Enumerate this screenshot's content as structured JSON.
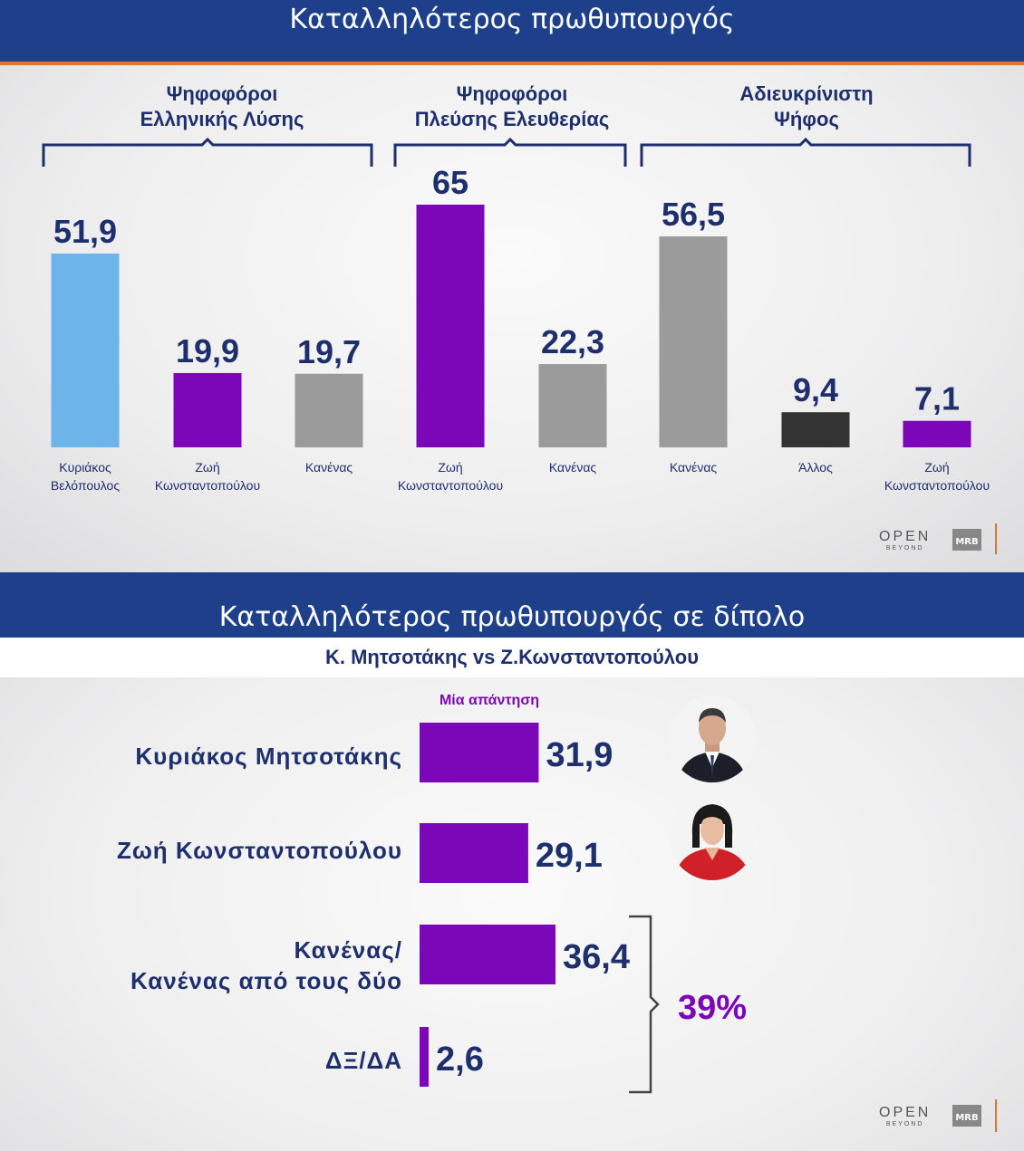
{
  "colors": {
    "title_bar": "#1e3f8a",
    "accent_orange": "#e9722a",
    "text_navy": "#1e2f6e",
    "light_blue": "#6cb4ea",
    "purple": "#7b07b8",
    "gray": "#9b9b9b",
    "dark": "#333333"
  },
  "top": {
    "title": "Καταλληλότερος πρωθυπουργός",
    "groups": [
      {
        "label_line1": "Ψηφοφόροι",
        "label_line2": "Ελληνικής Λύσης"
      },
      {
        "label_line1": "Ψηφοφόροι",
        "label_line2": "Πλεύσης Ελευθερίας"
      },
      {
        "label_line1": "Αδιευκρίνιστη",
        "label_line2": "Ψήφος"
      }
    ],
    "categories": [
      {
        "line1": "Κυριάκος",
        "line2": "Βελόπουλος"
      },
      {
        "line1": "Ζωή",
        "line2": "Κωνσταντοπούλου"
      },
      {
        "line1": "Κανένας",
        "line2": ""
      },
      {
        "line1": "Ζωή",
        "line2": "Κωνσταντοπούλου"
      },
      {
        "line1": "Κανένας",
        "line2": ""
      },
      {
        "line1": "Κανένας",
        "line2": ""
      },
      {
        "line1": "Άλλος",
        "line2": ""
      },
      {
        "line1": "Ζωή",
        "line2": "Κωνσταντοπούλου"
      }
    ],
    "logo_open": "OPEN",
    "logo_beyond": "BEYOND",
    "logo_mrb": "MRB"
  },
  "bottom": {
    "title": "Καταλληλότερος πρωθυπουργός σε δίπολο",
    "subtitle": "Κ. Μητσοτάκης vs Ζ.Κωνσταντοπούλου",
    "legend": "Μία απάντηση",
    "rows": [
      {
        "line1": "Κυριάκος Μητσοτάκης",
        "line2": ""
      },
      {
        "line1": "Ζωή Κωνσταντοπούλου",
        "line2": ""
      },
      {
        "line1": "Κανένας/",
        "line2": "Κανένας από τους δύο"
      },
      {
        "line1": "ΔΞ/ΔΑ",
        "line2": ""
      }
    ],
    "bracket_total": "39%",
    "logo_open": "OPEN",
    "logo_beyond": "BEYOND",
    "logo_mrb": "MRB"
  },
  "chart_data": [
    {
      "type": "bar",
      "title": "Καταλληλότερος πρωθυπουργός",
      "categories": [
        "Κυριάκος Βελόπουλος",
        "Ζωή Κωνσταντοπούλου",
        "Κανένας",
        "Ζωή Κωνσταντοπούλου",
        "Κανένας",
        "Κανένας",
        "Άλλος",
        "Ζωή Κωνσταντοπούλου"
      ],
      "groups": [
        "Ψηφοφόροι Ελληνικής Λύσης",
        "Ψηφοφόροι Ελληνικής Λύσης",
        "Ψηφοφόροι Ελληνικής Λύσης",
        "Ψηφοφόροι Πλεύσης Ελευθερίας",
        "Ψηφοφόροι Πλεύσης Ελευθερίας",
        "Αδιευκρίνιστη Ψήφος",
        "Αδιευκρίνιστη Ψήφος",
        "Αδιευκρίνιστη Ψήφος"
      ],
      "values": [
        51.9,
        19.9,
        19.7,
        65,
        22.3,
        56.5,
        9.4,
        7.1
      ],
      "value_labels": [
        "51,9",
        "19,9",
        "19,7",
        "65",
        "22,3",
        "56,5",
        "9,4",
        "7,1"
      ],
      "bar_colors": [
        "#6cb4ea",
        "#7b07b8",
        "#9b9b9b",
        "#7b07b8",
        "#9b9b9b",
        "#9b9b9b",
        "#333333",
        "#7b07b8"
      ],
      "ylim": [
        0,
        65
      ]
    },
    {
      "type": "bar",
      "orientation": "horizontal",
      "title": "Καταλληλότερος πρωθυπουργός σε δίπολο",
      "subtitle": "Κ. Μητσοτάκης vs Ζ.Κωνσταντοπούλου",
      "categories": [
        "Κυριάκος Μητσοτάκης",
        "Ζωή Κωνσταντοπούλου",
        "Κανένας/ Κανένας από τους δύο",
        "ΔΞ/ΔΑ"
      ],
      "series": [
        {
          "name": "Μία απάντηση",
          "values": [
            31.9,
            29.1,
            36.4,
            2.6
          ]
        }
      ],
      "value_labels": [
        "31,9",
        "29,1",
        "36,4",
        "2,6"
      ],
      "annotation": "39%",
      "xlim": [
        0,
        36.4
      ]
    }
  ]
}
